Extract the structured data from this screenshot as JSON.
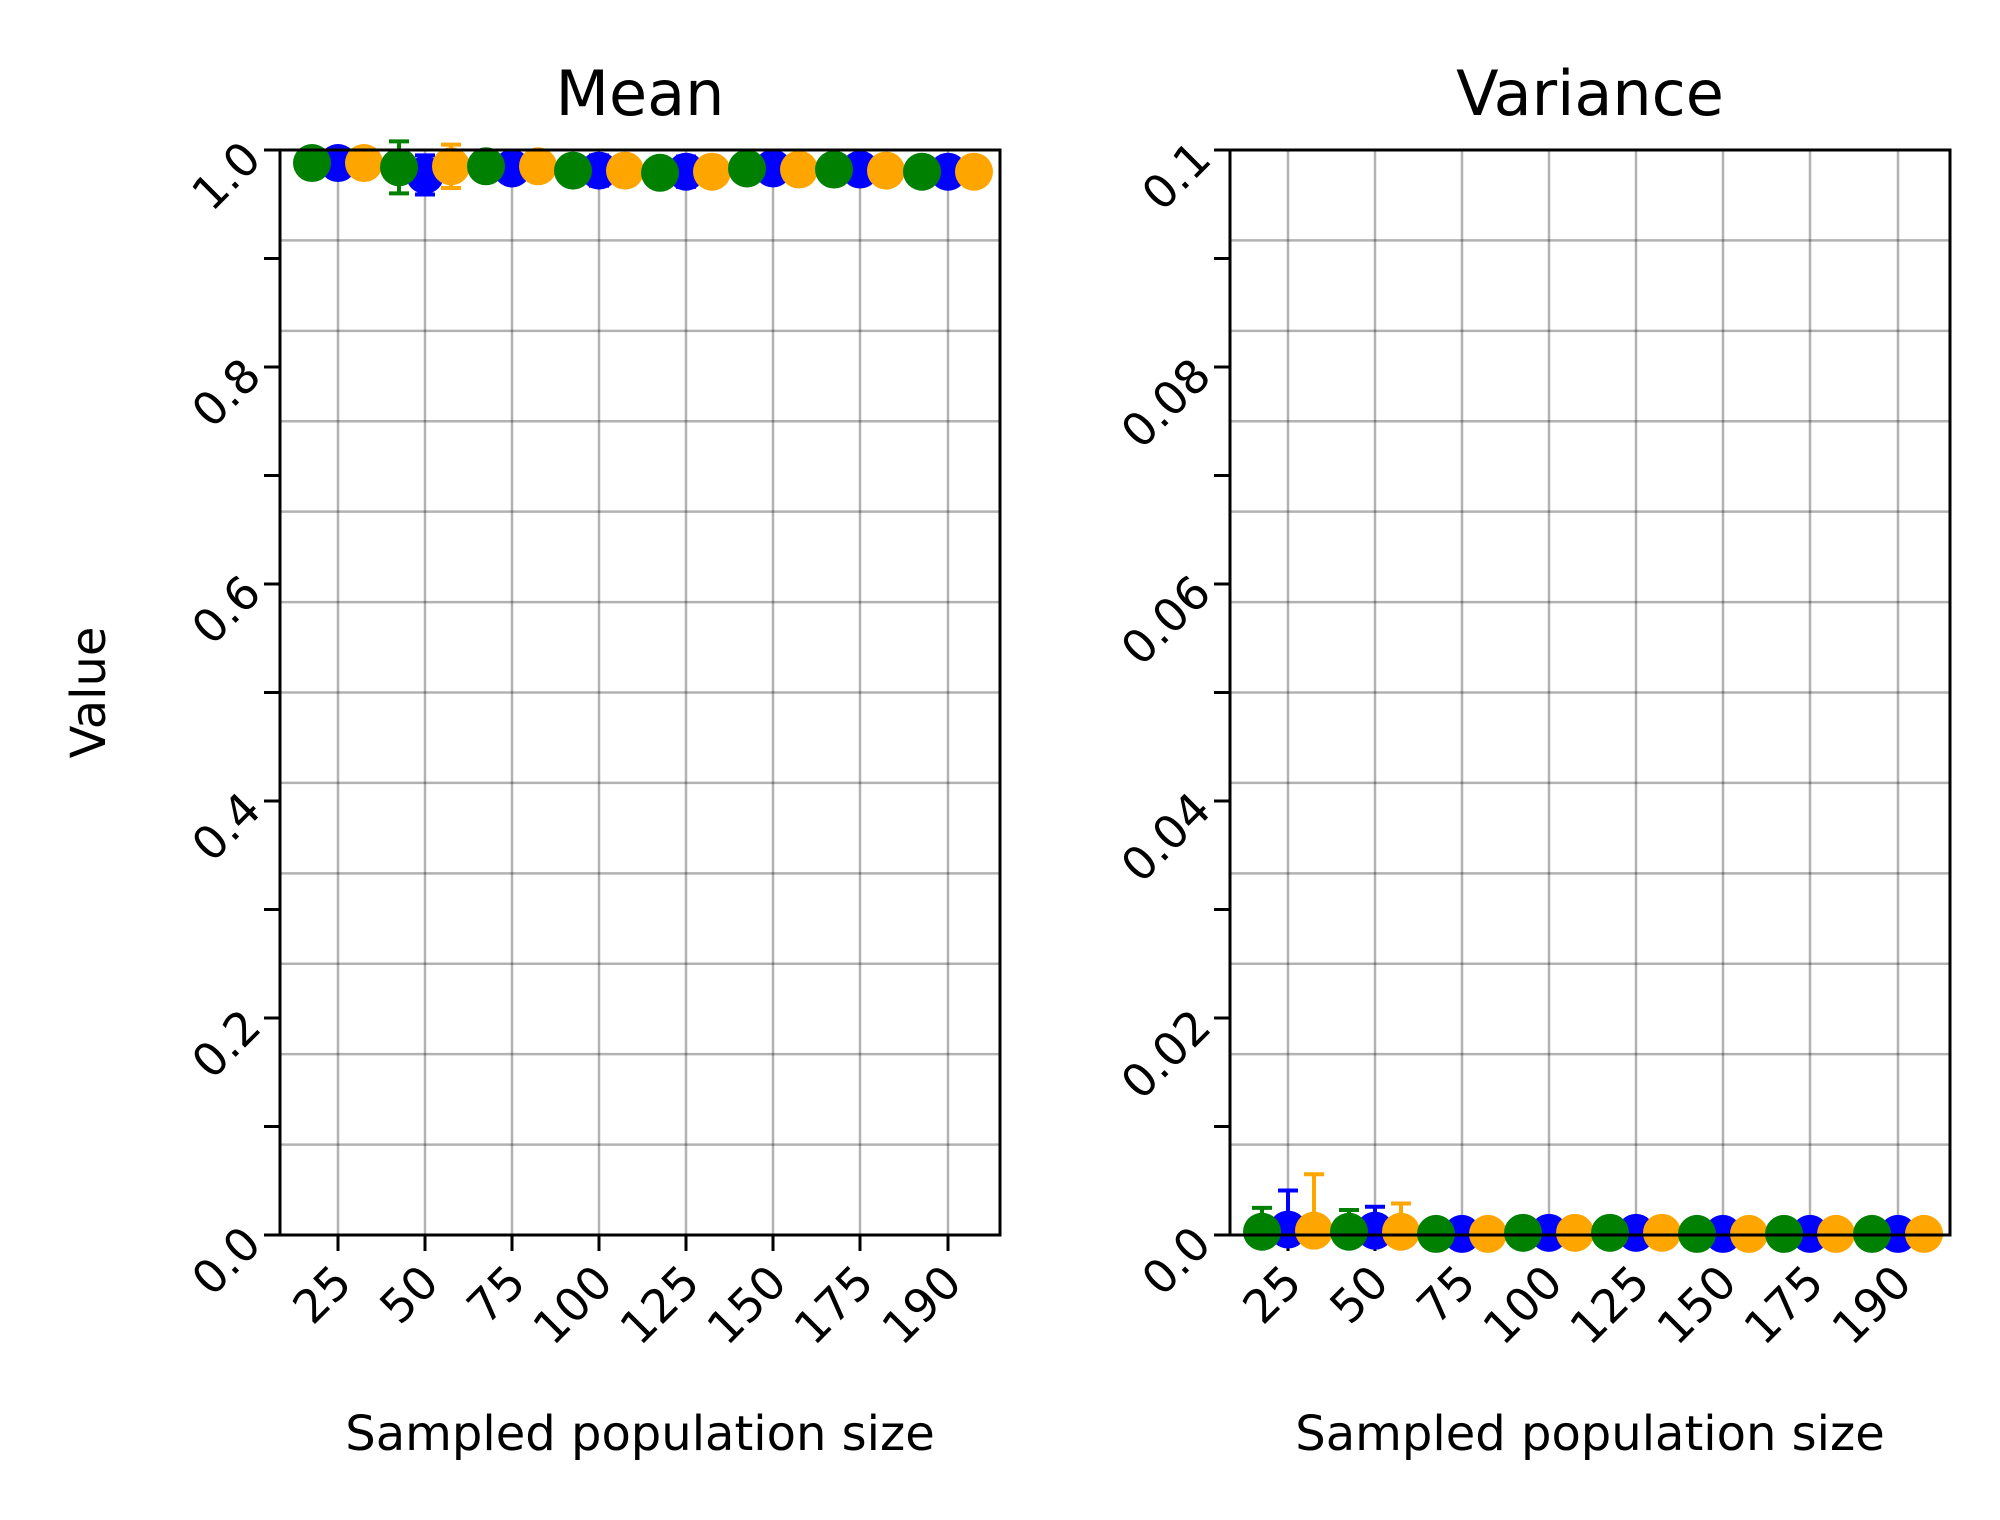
{
  "colors": {
    "blue": "#0000ff",
    "orange": "#ffa500",
    "green": "#008000"
  },
  "chart_data": [
    {
      "type": "scatter",
      "title": "Mean",
      "xlabel": "Sampled population size",
      "ylabel": "Value",
      "categories": [
        "25",
        "50",
        "75",
        "100",
        "125",
        "150",
        "175",
        "190"
      ],
      "ylim": [
        0,
        1.0
      ],
      "yticks": [
        "0.0",
        "0.2",
        "0.4",
        "0.6",
        "0.8",
        "1.0"
      ],
      "grid": true,
      "series": [
        {
          "color": "green",
          "values": [
            0.988,
            0.984,
            0.985,
            0.981,
            0.979,
            0.983,
            0.982,
            0.98
          ],
          "errors": [
            0.01,
            0.024,
            0.012,
            0.012,
            0.012,
            0.004,
            0.004,
            0.004
          ]
        },
        {
          "color": "blue",
          "values": [
            0.988,
            0.977,
            0.983,
            0.981,
            0.98,
            0.983,
            0.982,
            0.98
          ],
          "errors": [
            0.004,
            0.018,
            0.012,
            0.014,
            0.014,
            0.004,
            0.004,
            0.004
          ]
        },
        {
          "color": "orange",
          "values": [
            0.988,
            0.985,
            0.985,
            0.981,
            0.98,
            0.982,
            0.981,
            0.98
          ],
          "errors": [
            0.004,
            0.02,
            0.01,
            0.01,
            0.01,
            0.004,
            0.004,
            0.004
          ]
        }
      ]
    },
    {
      "type": "scatter",
      "title": "Variance",
      "xlabel": "Sampled population size",
      "ylabel": "",
      "categories": [
        "25",
        "50",
        "75",
        "100",
        "125",
        "150",
        "175",
        "190"
      ],
      "ylim": [
        0,
        0.1
      ],
      "yticks": [
        "0.0",
        "0.02",
        "0.04",
        "0.06",
        "0.08",
        "0.1"
      ],
      "grid": true,
      "series": [
        {
          "color": "green",
          "values": [
            0.0003,
            0.0003,
            0.0001,
            0.0002,
            0.0002,
            0.0001,
            0.0001,
            0.0001
          ],
          "errors": [
            0.0022,
            0.002,
            0.0001,
            0.0001,
            0.0001,
            0.0001,
            0.0001,
            0.0001
          ]
        },
        {
          "color": "blue",
          "values": [
            0.0005,
            0.0004,
            0.0001,
            0.0002,
            0.0002,
            0.0001,
            0.0001,
            0.0001
          ],
          "errors": [
            0.0036,
            0.0022,
            0.0001,
            0.0001,
            0.0001,
            0.0001,
            0.0001,
            0.0001
          ]
        },
        {
          "color": "orange",
          "values": [
            0.0004,
            0.0003,
            0.0001,
            0.0002,
            0.0002,
            0.0001,
            0.0001,
            0.0001
          ],
          "errors": [
            0.0052,
            0.0026,
            0.0001,
            0.0001,
            0.0001,
            0.0001,
            0.0001,
            0.0001
          ]
        }
      ]
    }
  ]
}
